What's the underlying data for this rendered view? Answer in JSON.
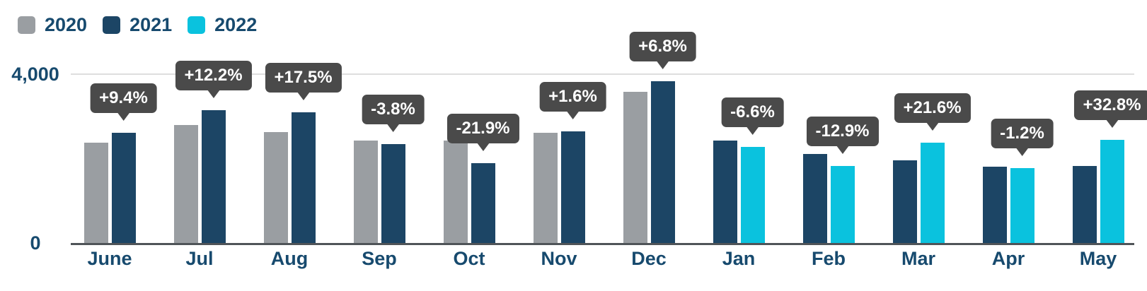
{
  "chart_data": {
    "type": "bar",
    "title": "",
    "xlabel": "",
    "ylabel": "",
    "ylim": [
      0,
      4000
    ],
    "grid": "single horizontal gridline at 4000",
    "legend_position": "top-left",
    "axis_text_color": "#174A6E",
    "gridline_color": "#DEDEDE",
    "axisline_color": "#4F5458",
    "tooltip_bg_color": "#4A4A4A",
    "tooltip_text_color": "#FFFFFF",
    "categories": [
      "June",
      "Jul",
      "Aug",
      "Sep",
      "Oct",
      "Nov",
      "Dec",
      "Jan",
      "Feb",
      "Mar",
      "Apr",
      "May"
    ],
    "series": [
      {
        "name": "2020",
        "color": "#9A9EA2",
        "values": [
          2390,
          2805,
          2640,
          2440,
          2440,
          2610,
          3590,
          null,
          null,
          null,
          null,
          null
        ]
      },
      {
        "name": "2021",
        "color": "#1C4565",
        "values": [
          2615,
          3147,
          3102,
          2347,
          1906,
          2652,
          3834,
          2440,
          2110,
          1960,
          1810,
          1840
        ]
      },
      {
        "name": "2022",
        "color": "#0AC2DE",
        "values": [
          null,
          null,
          null,
          null,
          null,
          null,
          null,
          2279,
          1838,
          2383,
          1788,
          2444
        ]
      }
    ],
    "annotations": [
      "+9.4%",
      "+12.2%",
      "+17.5%",
      "-3.8%",
      "-21.9%",
      "+1.6%",
      "+6.8%",
      "-6.6%",
      "-12.9%",
      "+21.6%",
      "-1.2%",
      "+32.8%"
    ],
    "y_ticks": [
      {
        "value": 4000,
        "label": "4,000"
      },
      {
        "value": 0,
        "label": "0"
      }
    ]
  }
}
